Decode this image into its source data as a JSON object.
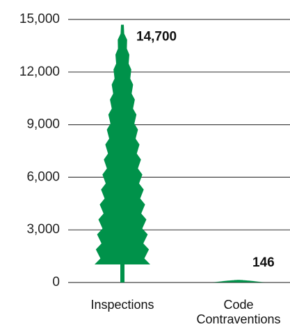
{
  "chart_data": {
    "type": "pictograph-bar",
    "categories": [
      "Inspections",
      "Code Contraventions"
    ],
    "values": [
      14700,
      146
    ],
    "value_labels": [
      "14,700",
      "146"
    ],
    "color": "#00924a",
    "ylim": [
      0,
      15000
    ],
    "yticks": [
      0,
      {
        "value": 3000,
        "label": "3,000"
      },
      {
        "value": 6000,
        "label": "6,000"
      },
      {
        "value": 9000,
        "label": "9,000"
      },
      {
        "value": 12000,
        "label": "12,000"
      },
      {
        "value": 15000,
        "label": "15,000"
      }
    ],
    "grid": true
  }
}
